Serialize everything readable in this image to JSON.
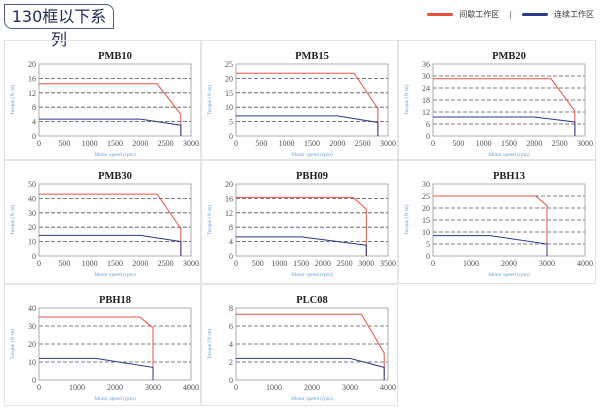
{
  "header": {
    "title": "130框以下系列"
  },
  "legend": {
    "intermittent": {
      "label": "间歇工作区",
      "color": "#e8513f"
    },
    "separator": "|",
    "continuous": {
      "label": "连续工作区",
      "color": "#2b3a8c"
    }
  },
  "chart_data": [
    {
      "type": "line",
      "title": "PMB10",
      "xlabel": "Motor speed (rpm)",
      "ylabel": "Torque (N·m)",
      "xlim": [
        0,
        3000
      ],
      "xticks": [
        0,
        500,
        1000,
        1500,
        2000,
        2500,
        3000
      ],
      "ylim": [
        0,
        20
      ],
      "yticks": [
        0,
        4,
        8,
        12,
        16,
        20
      ],
      "grid": "horizontal-dashed",
      "series": [
        {
          "name": "间歇工作区",
          "x": [
            0,
            2330,
            2800,
            2800
          ],
          "y": [
            14.5,
            14.5,
            6,
            0
          ]
        },
        {
          "name": "连续工作区",
          "x": [
            0,
            2000,
            2800,
            2800
          ],
          "y": [
            4.7,
            4.7,
            3,
            0
          ]
        }
      ]
    },
    {
      "type": "line",
      "title": "PMB15",
      "xlabel": "Motor speed (rpm)",
      "ylabel": "Torque (N·m)",
      "xlim": [
        0,
        3000
      ],
      "xticks": [
        0,
        500,
        1000,
        1500,
        2000,
        2500,
        3000
      ],
      "ylim": [
        0,
        25
      ],
      "yticks": [
        0,
        5,
        10,
        15,
        20,
        25
      ],
      "grid": "horizontal-dashed",
      "series": [
        {
          "name": "间歇工作区",
          "x": [
            0,
            2330,
            2800,
            2800
          ],
          "y": [
            21.8,
            21.8,
            9.5,
            0
          ]
        },
        {
          "name": "连续工作区",
          "x": [
            0,
            2000,
            2800,
            2800
          ],
          "y": [
            7,
            7,
            4.7,
            0
          ]
        }
      ]
    },
    {
      "type": "line",
      "title": "PMB20",
      "xlabel": "Motor speed (rpm)",
      "ylabel": "Torque (N·m)",
      "xlim": [
        0,
        3000
      ],
      "xticks": [
        0,
        500,
        1000,
        1500,
        2000,
        2500,
        3000
      ],
      "ylim": [
        0,
        36
      ],
      "yticks": [
        0,
        6,
        12,
        18,
        24,
        30,
        36
      ],
      "grid": "horizontal-dashed",
      "series": [
        {
          "name": "间歇工作区",
          "x": [
            0,
            2330,
            2800,
            2800
          ],
          "y": [
            28.6,
            28.6,
            12.5,
            0
          ]
        },
        {
          "name": "连续工作区",
          "x": [
            0,
            2000,
            2800,
            2800
          ],
          "y": [
            9.5,
            9.5,
            7,
            0
          ]
        }
      ]
    },
    {
      "type": "line",
      "title": "PMB30",
      "xlabel": "Motor speed (rpm)",
      "ylabel": "Torque (N·m)",
      "xlim": [
        0,
        3000
      ],
      "xticks": [
        0,
        500,
        1000,
        1500,
        2000,
        2500,
        3000
      ],
      "ylim": [
        0,
        50
      ],
      "yticks": [
        0,
        10,
        20,
        30,
        40,
        50
      ],
      "grid": "horizontal-dashed",
      "series": [
        {
          "name": "间歇工作区",
          "x": [
            0,
            2330,
            2800,
            2800
          ],
          "y": [
            43,
            43,
            19,
            0
          ]
        },
        {
          "name": "连续工作区",
          "x": [
            0,
            2000,
            2800,
            2800
          ],
          "y": [
            14.3,
            14.3,
            10,
            0
          ]
        }
      ]
    },
    {
      "type": "line",
      "title": "PBH09",
      "xlabel": "Motor speed (rpm)",
      "ylabel": "Torque (N·m)",
      "xlim": [
        0,
        3500
      ],
      "xticks": [
        0,
        500,
        1000,
        1500,
        2000,
        2500,
        3000,
        3500
      ],
      "ylim": [
        0,
        20
      ],
      "yticks": [
        0,
        4,
        8,
        12,
        16,
        20
      ],
      "grid": "horizontal-dashed",
      "series": [
        {
          "name": "间歇工作区",
          "x": [
            0,
            2700,
            3000,
            3000
          ],
          "y": [
            16.3,
            16.3,
            13,
            0
          ]
        },
        {
          "name": "连续工作区",
          "x": [
            0,
            1500,
            3000,
            3000
          ],
          "y": [
            5.3,
            5.3,
            3,
            0
          ]
        }
      ]
    },
    {
      "type": "line",
      "title": "PBH13",
      "xlabel": "Motor speed (rpm)",
      "ylabel": "Torque (N·m)",
      "xlim": [
        0,
        4000
      ],
      "xticks": [
        0,
        1000,
        2000,
        3000,
        4000
      ],
      "ylim": [
        0,
        30
      ],
      "yticks": [
        0,
        5,
        10,
        15,
        20,
        25,
        30
      ],
      "grid": "horizontal-dashed",
      "series": [
        {
          "name": "间歇工作区",
          "x": [
            0,
            2700,
            3000,
            3000
          ],
          "y": [
            25,
            25,
            21,
            0
          ]
        },
        {
          "name": "连续工作区",
          "x": [
            0,
            1500,
            3000,
            3000
          ],
          "y": [
            8.5,
            8.5,
            5,
            0
          ]
        }
      ]
    },
    {
      "type": "line",
      "title": "PBH18",
      "xlabel": "Motor speed (rpm)",
      "ylabel": "Torque (N·m)",
      "xlim": [
        0,
        4000
      ],
      "xticks": [
        0,
        1000,
        2000,
        3000,
        4000
      ],
      "ylim": [
        0,
        40
      ],
      "yticks": [
        0,
        10,
        20,
        30,
        40
      ],
      "grid": "horizontal-dashed",
      "series": [
        {
          "name": "间歇工作区",
          "x": [
            0,
            2650,
            3000,
            3000
          ],
          "y": [
            35,
            35,
            29,
            0
          ]
        },
        {
          "name": "连续工作区",
          "x": [
            0,
            1500,
            3000,
            3000
          ],
          "y": [
            12,
            12,
            7,
            0
          ]
        }
      ]
    },
    {
      "type": "line",
      "title": "PLC08",
      "xlabel": "Motor speed (rpm)",
      "ylabel": "Torque (N·m)",
      "xlim": [
        0,
        4000
      ],
      "xticks": [
        0,
        1000,
        2000,
        3000,
        4000
      ],
      "ylim": [
        0,
        8
      ],
      "yticks": [
        0,
        2,
        4,
        6,
        8
      ],
      "grid": "horizontal-dashed",
      "series": [
        {
          "name": "间歇工作区",
          "x": [
            0,
            3300,
            3900,
            3900
          ],
          "y": [
            7.3,
            7.3,
            3,
            0
          ]
        },
        {
          "name": "连续工作区",
          "x": [
            0,
            3000,
            3900,
            3900
          ],
          "y": [
            2.4,
            2.4,
            1.4,
            0
          ]
        }
      ]
    }
  ]
}
